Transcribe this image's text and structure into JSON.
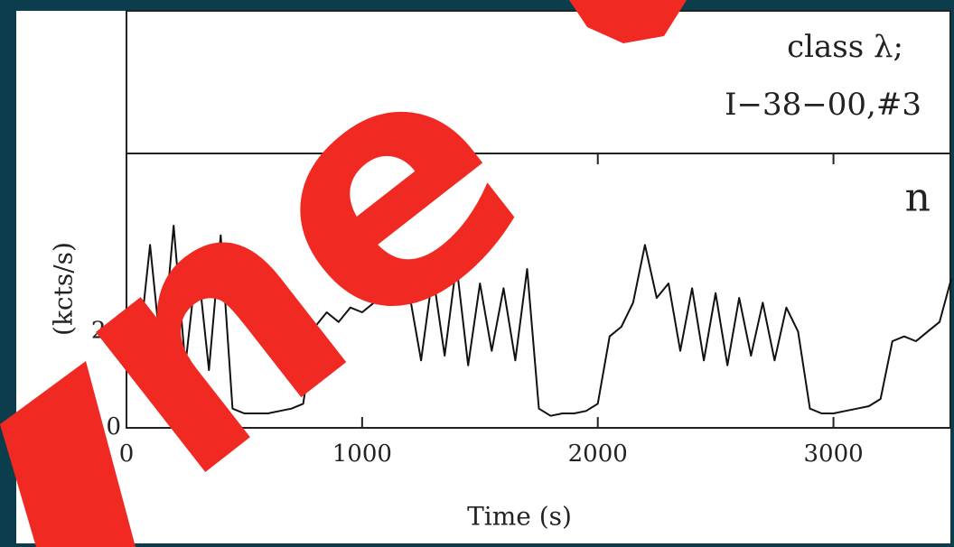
{
  "chart_data": {
    "type": "line",
    "xlabel": "Time (s)",
    "ylabel": "(kcts/s)",
    "annotations": [
      "class λ;",
      "I−38−00,#3",
      "n"
    ],
    "overlay_text": "ne",
    "x": [
      0,
      50,
      100,
      150,
      200,
      250,
      300,
      350,
      400,
      450,
      500,
      550,
      600,
      650,
      700,
      750,
      800,
      850,
      900,
      950,
      1000,
      1050,
      1100,
      1150,
      1200,
      1250,
      1300,
      1350,
      1400,
      1450,
      1500,
      1550,
      1600,
      1650,
      1700,
      1750,
      1800,
      1850,
      1900,
      1950,
      2000,
      2050,
      2100,
      2150,
      2200,
      2250,
      2300,
      2350,
      2400,
      2450,
      2500,
      2550,
      2600,
      2650,
      2700,
      2750,
      2800,
      2850,
      2900,
      2950,
      3000,
      3050,
      3100,
      3150,
      3200,
      3250,
      3300,
      3350,
      3400,
      3450,
      3500
    ],
    "series": [
      {
        "color": "#111111",
        "values": [
          25,
          15,
          38,
          14,
          42,
          13,
          35,
          12,
          40,
          4,
          3,
          3,
          3,
          3.5,
          4,
          5,
          21,
          24,
          22,
          25,
          24,
          26,
          27,
          30,
          28,
          14,
          32,
          15,
          34,
          13,
          30,
          16,
          29,
          14,
          33,
          4,
          2.5,
          3,
          3,
          3.5,
          5,
          19,
          21,
          26,
          38,
          27,
          30,
          16,
          29,
          14,
          28,
          13,
          27,
          15,
          26,
          14,
          25,
          20,
          4,
          3,
          3,
          3.5,
          4,
          4.5,
          6,
          18,
          19,
          18,
          20,
          22,
          31
        ]
      }
    ],
    "xlim": [
      0,
      3500
    ],
    "ylim": [
      0,
      57
    ],
    "xticks": [
      0,
      1000,
      2000,
      3000
    ],
    "yticks": [
      0,
      20
    ]
  }
}
